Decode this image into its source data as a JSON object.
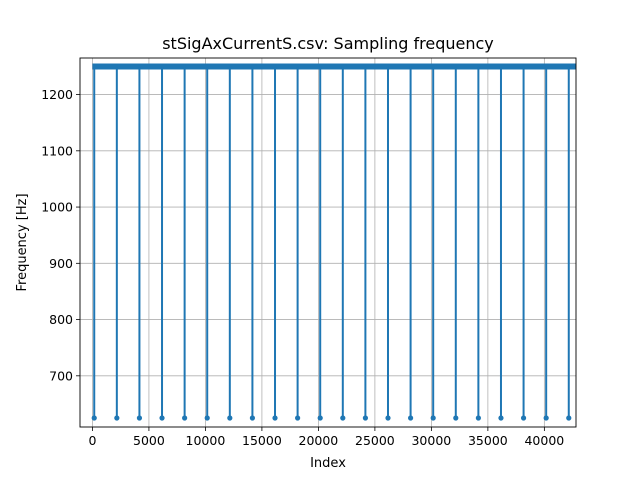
{
  "chart_data": {
    "type": "line",
    "title": "stSigAxCurrentS.csv: Sampling frequency",
    "xlabel": "Index",
    "ylabel": "Frequency [Hz]",
    "xlim": [
      -1100,
      42800
    ],
    "ylim": [
      609,
      1265
    ],
    "xticks": [
      0,
      5000,
      10000,
      15000,
      20000,
      25000,
      30000,
      35000,
      40000
    ],
    "yticks": [
      700,
      800,
      900,
      1000,
      1100,
      1200
    ],
    "grid": true,
    "series": [
      {
        "baseline": 1250,
        "x_start": 0,
        "x_end": 42800,
        "dip_value": 625,
        "dip_x": [
          160,
          2160,
          4160,
          6160,
          8160,
          10160,
          12160,
          14160,
          16160,
          18160,
          20160,
          22160,
          24160,
          26160,
          28160,
          30160,
          32160,
          34160,
          36160,
          38160,
          40160,
          42160
        ],
        "color": "#1f77b4"
      }
    ]
  }
}
